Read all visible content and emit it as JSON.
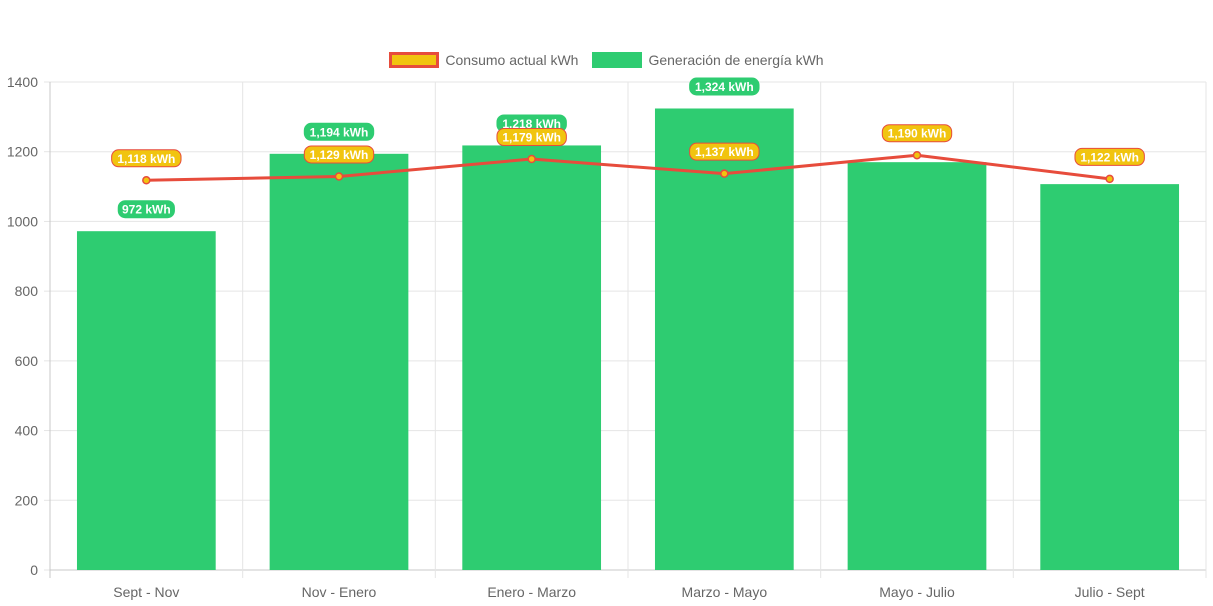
{
  "legend": {
    "consumo_label": "Consumo actual kWh",
    "generacion_label": "Generación de energía kWh"
  },
  "colors": {
    "bar": "#2ecc71",
    "line": "#e74c3c",
    "point": "#f1c40f",
    "grid": "#e5e5e5",
    "tick_text": "#666666",
    "label_text": "#ffffff"
  },
  "chart_data": {
    "type": "bar",
    "categories": [
      "Sept - Nov",
      "Nov - Enero",
      "Enero - Marzo",
      "Marzo - Mayo",
      "Mayo - Julio",
      "Julio - Sept"
    ],
    "series": [
      {
        "name": "Consumo actual kWh",
        "type": "line",
        "values": [
          1118,
          1129,
          1179,
          1137,
          1190,
          1122
        ],
        "labels": [
          "1,118 kWh",
          "1,129 kWh",
          "1,179 kWh",
          "1,137 kWh",
          "1,190 kWh",
          "1,122 kWh"
        ]
      },
      {
        "name": "Generación de energía kWh",
        "type": "bar",
        "values": [
          972,
          1194,
          1218,
          1324,
          1170,
          1107
        ],
        "labels": [
          "972 kWh",
          "1,194 kWh",
          "1,218 kWh",
          "1,324 kWh",
          "",
          ""
        ]
      }
    ],
    "ylim": [
      0,
      1400
    ],
    "yticks": [
      0,
      200,
      400,
      600,
      800,
      1000,
      1200,
      1400
    ],
    "legend_position": "top-center",
    "grid": true
  }
}
